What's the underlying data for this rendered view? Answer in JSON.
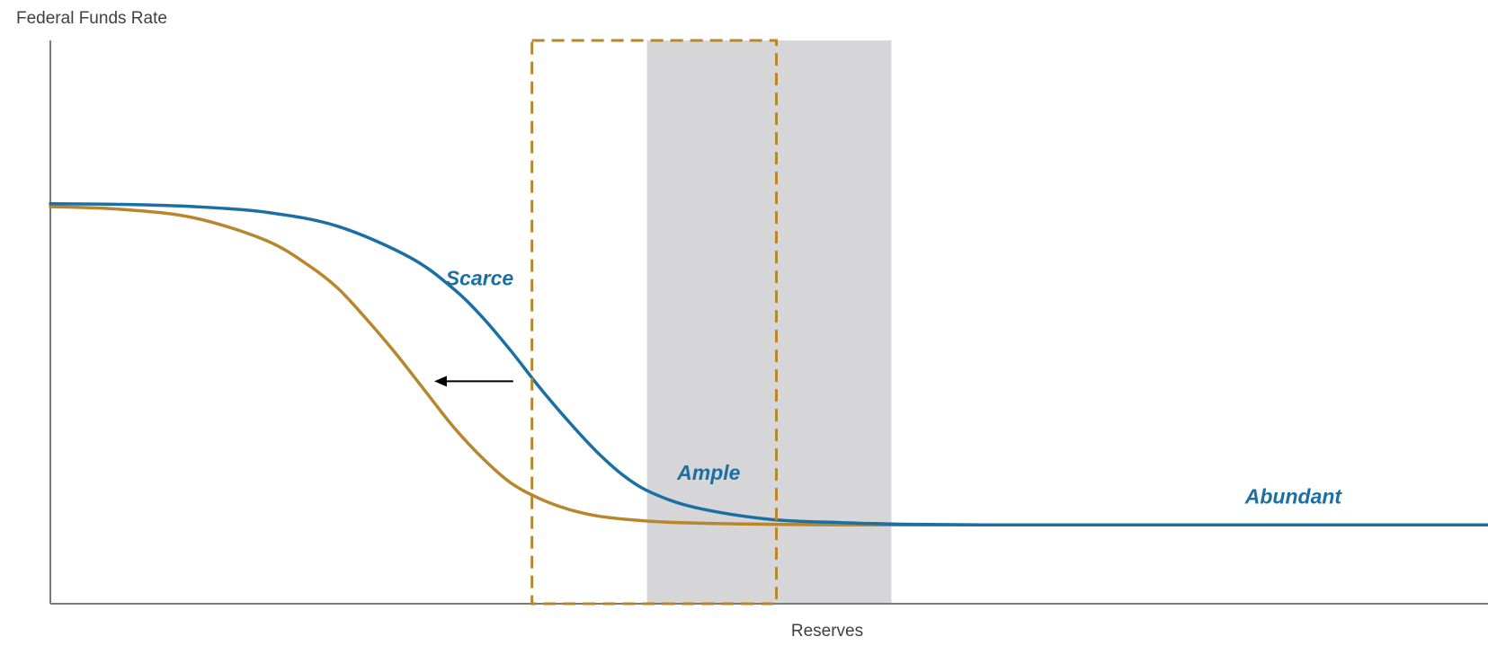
{
  "chart_data": {
    "type": "line",
    "title": "",
    "ylabel": "Federal Funds Rate",
    "xlabel": "Reserves",
    "xlim": [
      0,
      100
    ],
    "ylim": [
      0,
      100
    ],
    "grid": false,
    "legend": "none",
    "series": [
      {
        "key": "blue",
        "color": "#1a6fa3",
        "x": [
          0,
          5,
          10,
          15,
          20,
          25,
          28,
          30,
          32,
          34,
          36,
          38,
          40,
          42,
          45,
          50,
          55,
          60,
          65,
          70,
          80,
          90,
          100
        ],
        "y": [
          71,
          70.9,
          70.5,
          69.5,
          67,
          61.5,
          56,
          51,
          45,
          38.5,
          32.5,
          27,
          22.5,
          19.5,
          17,
          15,
          14.4,
          14.1,
          14,
          14,
          14,
          14,
          14
        ]
      },
      {
        "key": "gold",
        "color": "#b8862b",
        "x": [
          0,
          5,
          10,
          15,
          18,
          20,
          22,
          24,
          26,
          28,
          30,
          32,
          34,
          36,
          38,
          40,
          42,
          45,
          50,
          55,
          60,
          70,
          80,
          90,
          100
        ],
        "y": [
          70.5,
          70,
          68.5,
          64.5,
          60,
          56,
          50.5,
          44.5,
          38,
          31.5,
          26,
          21.5,
          18.7,
          16.8,
          15.6,
          15,
          14.6,
          14.3,
          14.1,
          14,
          14,
          14,
          14,
          14,
          14
        ]
      }
    ],
    "shaded_region": {
      "x": [
        41.5,
        58.5
      ],
      "color": "#d6d6d9"
    },
    "dashed_box": {
      "x": [
        33.5,
        50.5
      ],
      "y": [
        0,
        100
      ],
      "color": "#b8862b"
    },
    "shift_arrow": {
      "x_from": 32.2,
      "x_to": 26.7,
      "y": 39.5,
      "color": "#000000"
    },
    "annotations": [
      {
        "text": "Scarce",
        "x": 27.5,
        "y": 56.5,
        "color": "#1a6fa3"
      },
      {
        "text": "Ample",
        "x": 43.6,
        "y": 22,
        "color": "#1a6fa3"
      },
      {
        "text": "Abundant",
        "x": 83.1,
        "y": 17.8,
        "color": "#1a6fa3"
      }
    ]
  }
}
